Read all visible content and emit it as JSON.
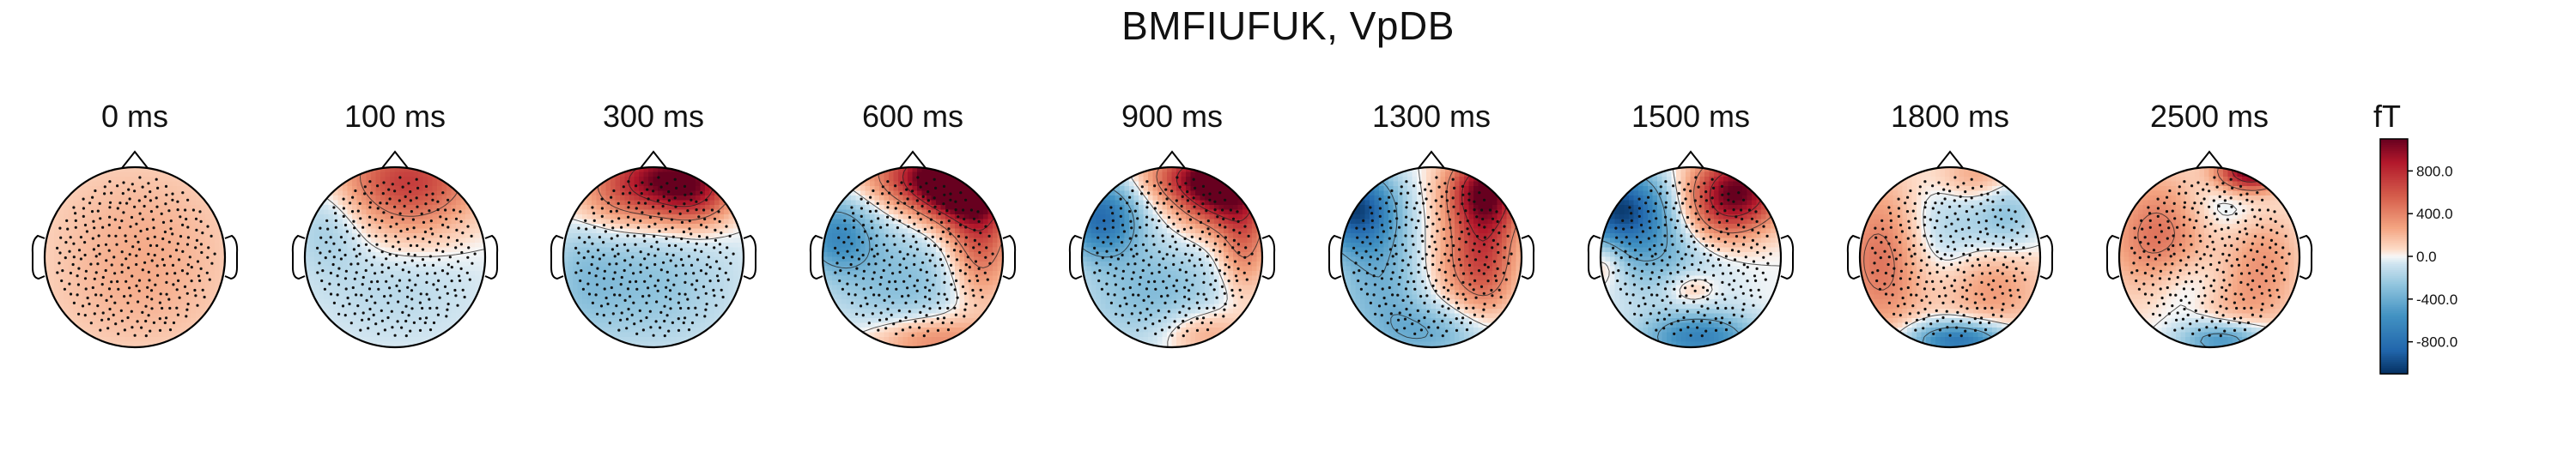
{
  "title": "BMFIUFUK, VpDB",
  "chart_data": {
    "type": "heatmap",
    "subtype": "topomap",
    "title": "BMFIUFUK, VpDB",
    "unit": "fT",
    "time_unit": "ms",
    "panels": [
      {
        "label": "0 ms",
        "time": 0,
        "blobs": [
          {
            "x": 0.0,
            "y": 0.35,
            "sx": 0.9,
            "sy": 0.7,
            "amp": 150
          },
          {
            "x": 0.2,
            "y": -0.15,
            "sx": 0.7,
            "sy": 0.7,
            "amp": 90
          },
          {
            "x": -0.1,
            "y": -0.65,
            "sx": 0.9,
            "sy": 0.45,
            "amp": 70
          }
        ]
      },
      {
        "label": "100 ms",
        "time": 100,
        "blobs": [
          {
            "x": 0.15,
            "y": 0.9,
            "sx": 0.55,
            "sy": 0.3,
            "amp": 600
          },
          {
            "x": 0.15,
            "y": 0.45,
            "sx": 0.5,
            "sy": 0.35,
            "amp": 250
          },
          {
            "x": -0.75,
            "y": 0.35,
            "sx": 0.3,
            "sy": 0.35,
            "amp": -200
          },
          {
            "x": 0.0,
            "y": -0.3,
            "sx": 0.7,
            "sy": 0.5,
            "amp": -150
          }
        ]
      },
      {
        "label": "300 ms",
        "time": 300,
        "blobs": [
          {
            "x": 0.15,
            "y": 0.92,
            "sx": 0.5,
            "sy": 0.25,
            "amp": 900
          },
          {
            "x": 0.45,
            "y": 0.65,
            "sx": 0.3,
            "sy": 0.25,
            "amp": 500
          },
          {
            "x": -0.3,
            "y": 0.6,
            "sx": 0.45,
            "sy": 0.25,
            "amp": 350
          },
          {
            "x": -0.1,
            "y": -0.3,
            "sx": 0.7,
            "sy": 0.55,
            "amp": -280
          },
          {
            "x": -0.8,
            "y": -0.2,
            "sx": 0.3,
            "sy": 0.5,
            "amp": -150
          }
        ]
      },
      {
        "label": "600 ms",
        "time": 600,
        "blobs": [
          {
            "x": 0.55,
            "y": 0.8,
            "sx": 0.35,
            "sy": 0.3,
            "amp": 1200
          },
          {
            "x": 0.1,
            "y": 0.9,
            "sx": 0.45,
            "sy": 0.25,
            "amp": 700
          },
          {
            "x": 0.75,
            "y": 0.2,
            "sx": 0.25,
            "sy": 0.5,
            "amp": 600
          },
          {
            "x": -0.85,
            "y": 0.25,
            "sx": 0.3,
            "sy": 0.3,
            "amp": -550
          },
          {
            "x": -0.1,
            "y": -0.3,
            "sx": 0.6,
            "sy": 0.5,
            "amp": -300
          },
          {
            "x": 0.2,
            "y": -0.92,
            "sx": 0.5,
            "sy": 0.2,
            "amp": 450
          }
        ]
      },
      {
        "label": "900 ms",
        "time": 900,
        "blobs": [
          {
            "x": 0.55,
            "y": 0.75,
            "sx": 0.35,
            "sy": 0.3,
            "amp": 1050
          },
          {
            "x": 0.2,
            "y": 0.9,
            "sx": 0.4,
            "sy": 0.2,
            "amp": 500
          },
          {
            "x": 0.8,
            "y": 0.15,
            "sx": 0.2,
            "sy": 0.4,
            "amp": 450
          },
          {
            "x": -0.8,
            "y": 0.45,
            "sx": 0.3,
            "sy": 0.3,
            "amp": -800
          },
          {
            "x": -0.2,
            "y": -0.4,
            "sx": 0.6,
            "sy": 0.45,
            "amp": -320
          },
          {
            "x": 0.35,
            "y": -0.85,
            "sx": 0.35,
            "sy": 0.2,
            "amp": 320
          }
        ]
      },
      {
        "label": "1300 ms",
        "time": 1300,
        "blobs": [
          {
            "x": 0.6,
            "y": 0.75,
            "sx": 0.3,
            "sy": 0.3,
            "amp": 950
          },
          {
            "x": 0.6,
            "y": 0.05,
            "sx": 0.25,
            "sy": 0.5,
            "amp": 550
          },
          {
            "x": 0.2,
            "y": -0.1,
            "sx": 0.35,
            "sy": 0.4,
            "amp": 300
          },
          {
            "x": -0.85,
            "y": 0.55,
            "sx": 0.3,
            "sy": 0.3,
            "amp": -950
          },
          {
            "x": -0.5,
            "y": -0.2,
            "sx": 0.45,
            "sy": 0.5,
            "amp": -400
          },
          {
            "x": 0.05,
            "y": -0.85,
            "sx": 0.5,
            "sy": 0.25,
            "amp": -350
          }
        ]
      },
      {
        "label": "1500 ms",
        "time": 1500,
        "blobs": [
          {
            "x": 0.55,
            "y": 0.75,
            "sx": 0.35,
            "sy": 0.3,
            "amp": 1000
          },
          {
            "x": 0.25,
            "y": 0.45,
            "sx": 0.3,
            "sy": 0.3,
            "amp": 350
          },
          {
            "x": -0.8,
            "y": 0.55,
            "sx": 0.35,
            "sy": 0.3,
            "amp": -950
          },
          {
            "x": -0.3,
            "y": 0.05,
            "sx": 0.5,
            "sy": 0.4,
            "amp": -350
          },
          {
            "x": 0.1,
            "y": -0.9,
            "sx": 0.45,
            "sy": 0.2,
            "amp": -650
          },
          {
            "x": 0.0,
            "y": -0.35,
            "sx": 0.2,
            "sy": 0.15,
            "amp": 250
          },
          {
            "x": -0.95,
            "y": -0.05,
            "sx": 0.15,
            "sy": 0.2,
            "amp": 250
          }
        ]
      },
      {
        "label": "1800 ms",
        "time": 1800,
        "blobs": [
          {
            "x": -0.75,
            "y": 0.0,
            "sx": 0.35,
            "sy": 0.6,
            "amp": 500
          },
          {
            "x": 0.45,
            "y": -0.3,
            "sx": 0.4,
            "sy": 0.4,
            "amp": 350
          },
          {
            "x": 0.3,
            "y": 0.9,
            "sx": 0.3,
            "sy": 0.2,
            "amp": 300
          },
          {
            "x": 0.0,
            "y": 0.25,
            "sx": 0.45,
            "sy": 0.4,
            "amp": -250
          },
          {
            "x": 0.65,
            "y": 0.45,
            "sx": 0.25,
            "sy": 0.3,
            "amp": -250
          },
          {
            "x": 0.1,
            "y": -0.92,
            "sx": 0.4,
            "sy": 0.15,
            "amp": -800
          }
        ]
      },
      {
        "label": "2500 ms",
        "time": 2500,
        "blobs": [
          {
            "x": 0.45,
            "y": 0.95,
            "sx": 0.25,
            "sy": 0.15,
            "amp": 1100
          },
          {
            "x": -0.55,
            "y": 0.2,
            "sx": 0.4,
            "sy": 0.5,
            "amp": 500
          },
          {
            "x": 0.6,
            "y": 0.0,
            "sx": 0.3,
            "sy": 0.4,
            "amp": 300
          },
          {
            "x": 0.2,
            "y": -0.55,
            "sx": 0.4,
            "sy": 0.3,
            "amp": 250
          },
          {
            "x": -0.25,
            "y": -0.35,
            "sx": 0.35,
            "sy": 0.3,
            "amp": -300
          },
          {
            "x": 0.15,
            "y": -0.92,
            "sx": 0.35,
            "sy": 0.15,
            "amp": -600
          },
          {
            "x": 0.15,
            "y": 0.55,
            "sx": 0.35,
            "sy": 0.25,
            "amp": -150
          }
        ]
      }
    ],
    "colorbar": {
      "label": "fT",
      "colormap": "RdBu_r",
      "vmin": -1100,
      "vmax": 1100,
      "ticks": [
        800.0,
        400.0,
        0.0,
        -400.0,
        -800.0
      ],
      "tick_labels": [
        "800.0",
        "400.0",
        "0.0",
        "-400.0",
        "-800.0"
      ]
    },
    "sensors": "MEG sensor grid (dots)",
    "contours": "isolines"
  }
}
